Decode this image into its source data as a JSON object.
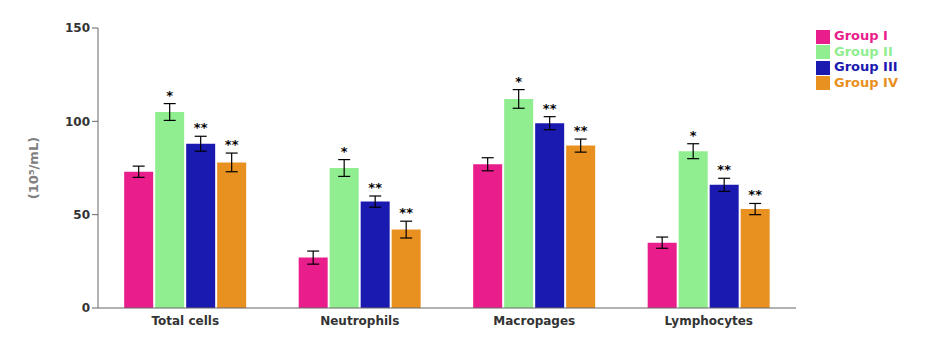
{
  "chart_data": {
    "type": "bar",
    "categories": [
      "Total cells",
      "Neutrophils",
      "Macropages",
      "Lymphocytes"
    ],
    "ylabel": "(10⁵/mL)",
    "ylim": [
      0,
      150
    ],
    "yticks": [
      0,
      50,
      100,
      150
    ],
    "grid": false,
    "legend": "right",
    "series": [
      {
        "name": "Group I",
        "color": "#E91E8C",
        "values": [
          73,
          27,
          77,
          35
        ],
        "errors": [
          3.0,
          3.5,
          3.5,
          3.0
        ],
        "significance": [
          null,
          null,
          null,
          null
        ]
      },
      {
        "name": "Group II",
        "color": "#90EE90",
        "values": [
          105,
          75,
          112,
          84
        ],
        "errors": [
          4.5,
          4.5,
          5.0,
          4.0
        ],
        "significance": [
          "*",
          "*",
          "*",
          "*"
        ]
      },
      {
        "name": "Group III",
        "color": "#1A1AB0",
        "values": [
          88,
          57,
          99,
          66
        ],
        "errors": [
          4.0,
          3.0,
          3.5,
          3.5
        ],
        "significance": [
          "**",
          "**",
          "**",
          "**"
        ]
      },
      {
        "name": "Group IV",
        "color": "#E89020",
        "values": [
          78,
          42,
          87,
          53
        ],
        "errors": [
          5.0,
          4.5,
          3.5,
          3.0
        ],
        "significance": [
          "**",
          "**",
          "**",
          "**"
        ]
      }
    ]
  }
}
